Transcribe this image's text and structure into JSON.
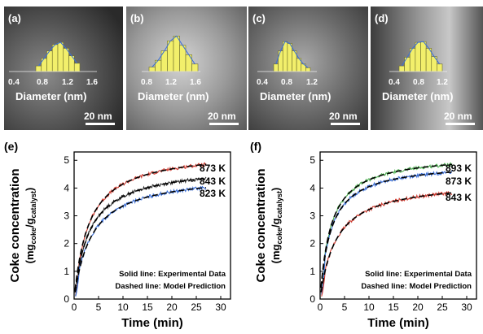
{
  "micrographs": [
    {
      "label": "(a)",
      "xticks": [
        "0.4",
        "0.8",
        "1.2",
        "1.6"
      ],
      "xlabel": "Diameter (nm)",
      "scale_bar": "20 nm",
      "hist": [
        0.15,
        0.35,
        0.55,
        0.72,
        0.78,
        0.62,
        0.42,
        0.22
      ],
      "hist_range": [
        0.75,
        1.35
      ]
    },
    {
      "label": "(b)",
      "xticks": [
        "0.8",
        "1.2",
        "1.6"
      ],
      "xlabel": "Diameter (nm)",
      "scale_bar": "20 nm",
      "hist": [
        0.12,
        0.3,
        0.55,
        0.82,
        0.95,
        0.7,
        0.45,
        0.2
      ],
      "hist_range": [
        0.85,
        1.55
      ]
    },
    {
      "label": "(c)",
      "xticks": [
        "0.4",
        "0.8",
        "1.2"
      ],
      "xlabel": "Diameter (nm)",
      "scale_bar": "20 nm",
      "hist": [
        0.2,
        0.55,
        0.8,
        0.75,
        0.55,
        0.35,
        0.2,
        0.1
      ],
      "hist_range": [
        0.6,
        1.25
      ]
    },
    {
      "label": "(d)",
      "xticks": [
        "0.4",
        "0.8",
        "1.2"
      ],
      "xlabel": "Diameter (nm)",
      "scale_bar": "20 nm",
      "hist": [
        0.15,
        0.38,
        0.62,
        0.78,
        0.8,
        0.62,
        0.4,
        0.2
      ],
      "hist_range": [
        0.55,
        1.25
      ]
    }
  ],
  "chart_data": [
    {
      "type": "line",
      "panel": "(e)",
      "xlabel": "Time (min)",
      "ylabel_main": "Coke concentration",
      "ylabel_sub_open": "(mg",
      "ylabel_sub_coke": "coke",
      "ylabel_sub_mid": "/g",
      "ylabel_sub_cat": "catalyst",
      "ylabel_sub_close": ")",
      "xlim": [
        0,
        32
      ],
      "ylim": [
        0,
        5.3
      ],
      "xticks": [
        "0",
        "5",
        "10",
        "15",
        "20",
        "25",
        "30"
      ],
      "yticks": [
        "0",
        "1",
        "2",
        "3",
        "4",
        "5"
      ],
      "annotations": [
        "Solid line: Experimental Data",
        "Dashed line: Model Prediction"
      ],
      "series": [
        {
          "name": "873 K",
          "color": "#d03a2f",
          "qmax": 5.4,
          "k": 0.33
        },
        {
          "name": "843 K",
          "color": "#2b2b2b",
          "qmax": 4.85,
          "k": 0.32
        },
        {
          "name": "823 K",
          "color": "#3a6fd8",
          "qmax": 4.55,
          "k": 0.28
        }
      ]
    },
    {
      "type": "line",
      "panel": "(f)",
      "xlabel": "Time (min)",
      "ylabel_main": "Coke concentration",
      "ylabel_sub_open": "(mg",
      "ylabel_sub_coke": "coke",
      "ylabel_sub_mid": "/g",
      "ylabel_sub_cat": "catalyst",
      "ylabel_sub_close": ")",
      "xlim": [
        0,
        32
      ],
      "ylim": [
        0,
        5.3
      ],
      "xticks": [
        "0",
        "5",
        "10",
        "15",
        "20",
        "25",
        "30"
      ],
      "yticks": [
        "0",
        "1",
        "2",
        "3",
        "4",
        "5"
      ],
      "annotations": [
        "Solid line: Experimental Data",
        "Dashed line: Model Prediction"
      ],
      "series": [
        {
          "name": "893 K",
          "color": "#4caf50",
          "qmax": 5.25,
          "k": 0.45
        },
        {
          "name": "873 K",
          "color": "#3a6fd8",
          "qmax": 4.95,
          "k": 0.45
        },
        {
          "name": "843 K",
          "color": "#d03a2f",
          "qmax": 4.3,
          "k": 0.3
        }
      ]
    }
  ]
}
